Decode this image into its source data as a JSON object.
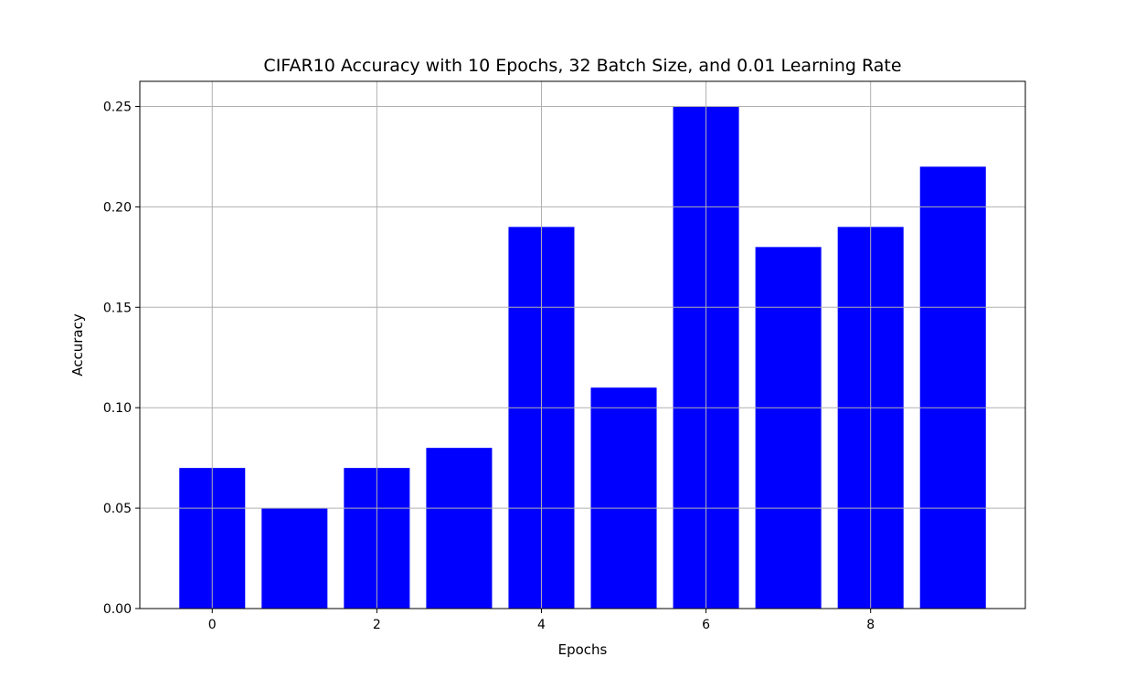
{
  "chart_data": {
    "type": "bar",
    "title": "CIFAR10 Accuracy with 10 Epochs, 32 Batch Size, and 0.01 Learning Rate",
    "xlabel": "Epochs",
    "ylabel": "Accuracy",
    "categories": [
      0,
      1,
      2,
      3,
      4,
      5,
      6,
      7,
      8,
      9
    ],
    "values": [
      0.07,
      0.05,
      0.07,
      0.08,
      0.19,
      0.11,
      0.25,
      0.18,
      0.19,
      0.22
    ],
    "xlim": [
      -0.88,
      9.88
    ],
    "ylim": [
      0,
      0.2625
    ],
    "xticks": [
      0,
      2,
      4,
      6,
      8
    ],
    "xtick_labels": [
      "0",
      "2",
      "4",
      "6",
      "8"
    ],
    "yticks": [
      0.0,
      0.05,
      0.1,
      0.15,
      0.2,
      0.25
    ],
    "ytick_labels": [
      "0.00",
      "0.05",
      "0.10",
      "0.15",
      "0.20",
      "0.25"
    ],
    "bar_color": "#0000ff",
    "grid": true,
    "legend": "none"
  }
}
